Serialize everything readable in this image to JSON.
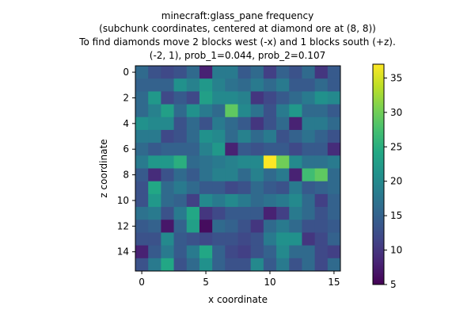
{
  "chart_data": {
    "type": "heatmap",
    "title_lines": [
      "minecraft:glass_pane frequency",
      "(subchunk coordinates, centered at diamond ore at (8, 8))",
      "To find diamonds move 2 blocks west (-x) and 1 blocks south (+z).",
      "(-2, 1), prob_1=0.044, prob_2=0.107"
    ],
    "xlabel": "x coordinate",
    "ylabel": "z coordinate",
    "x_ticks": [
      0,
      5,
      10,
      15
    ],
    "y_ticks": [
      0,
      2,
      4,
      6,
      8,
      10,
      12,
      14
    ],
    "colorbar_ticks": [
      5,
      10,
      15,
      20,
      25,
      30,
      35
    ],
    "colorscale": "viridis",
    "value_range": [
      5,
      37
    ],
    "rows": 16,
    "cols": 16,
    "z": [
      [
        16,
        13,
        12,
        13,
        16,
        8,
        18,
        18,
        14,
        16,
        11,
        15,
        13,
        16,
        10,
        14
      ],
      [
        15,
        15,
        15,
        21,
        19,
        22,
        19,
        17,
        16,
        18,
        16,
        18,
        14,
        14,
        16,
        14
      ],
      [
        16,
        22,
        12,
        14,
        12,
        23,
        20,
        20,
        19,
        10,
        12,
        14,
        16,
        18,
        21,
        20
      ],
      [
        16,
        19,
        23,
        16,
        21,
        18,
        16,
        29,
        20,
        17,
        13,
        18,
        22,
        16,
        16,
        14
      ],
      [
        21,
        20,
        20,
        13,
        16,
        13,
        18,
        16,
        14,
        10,
        13,
        16,
        8,
        18,
        18,
        16
      ],
      [
        18,
        18,
        12,
        13,
        16,
        21,
        20,
        16,
        19,
        16,
        18,
        13,
        15,
        17,
        15,
        13
      ],
      [
        16,
        14,
        15,
        15,
        15,
        19,
        22,
        8,
        14,
        13,
        14,
        14,
        12,
        14,
        14,
        9
      ],
      [
        18,
        22,
        22,
        25,
        16,
        17,
        18,
        19,
        20,
        20,
        37,
        30,
        20,
        17,
        17,
        18
      ],
      [
        14,
        9,
        13,
        16,
        14,
        17,
        19,
        19,
        16,
        19,
        16,
        18,
        8,
        27,
        29,
        16
      ],
      [
        13,
        24,
        16,
        18,
        16,
        14,
        14,
        12,
        13,
        16,
        14,
        13,
        18,
        14,
        15,
        16
      ],
      [
        13,
        22,
        16,
        15,
        11,
        20,
        18,
        20,
        18,
        16,
        17,
        18,
        20,
        16,
        11,
        15
      ],
      [
        17,
        18,
        13,
        18,
        24,
        10,
        12,
        14,
        14,
        14,
        8,
        11,
        18,
        16,
        13,
        15
      ],
      [
        14,
        15,
        7,
        15,
        23,
        6,
        16,
        15,
        13,
        10,
        16,
        18,
        16,
        13,
        13,
        14
      ],
      [
        13,
        13,
        20,
        14,
        13,
        12,
        13,
        13,
        12,
        13,
        18,
        21,
        21,
        10,
        12,
        15
      ],
      [
        8,
        14,
        18,
        14,
        18,
        24,
        15,
        12,
        11,
        13,
        15,
        20,
        16,
        16,
        12,
        11
      ],
      [
        13,
        18,
        24,
        13,
        16,
        21,
        15,
        13,
        13,
        20,
        14,
        18,
        13,
        16,
        12,
        16
      ]
    ]
  }
}
